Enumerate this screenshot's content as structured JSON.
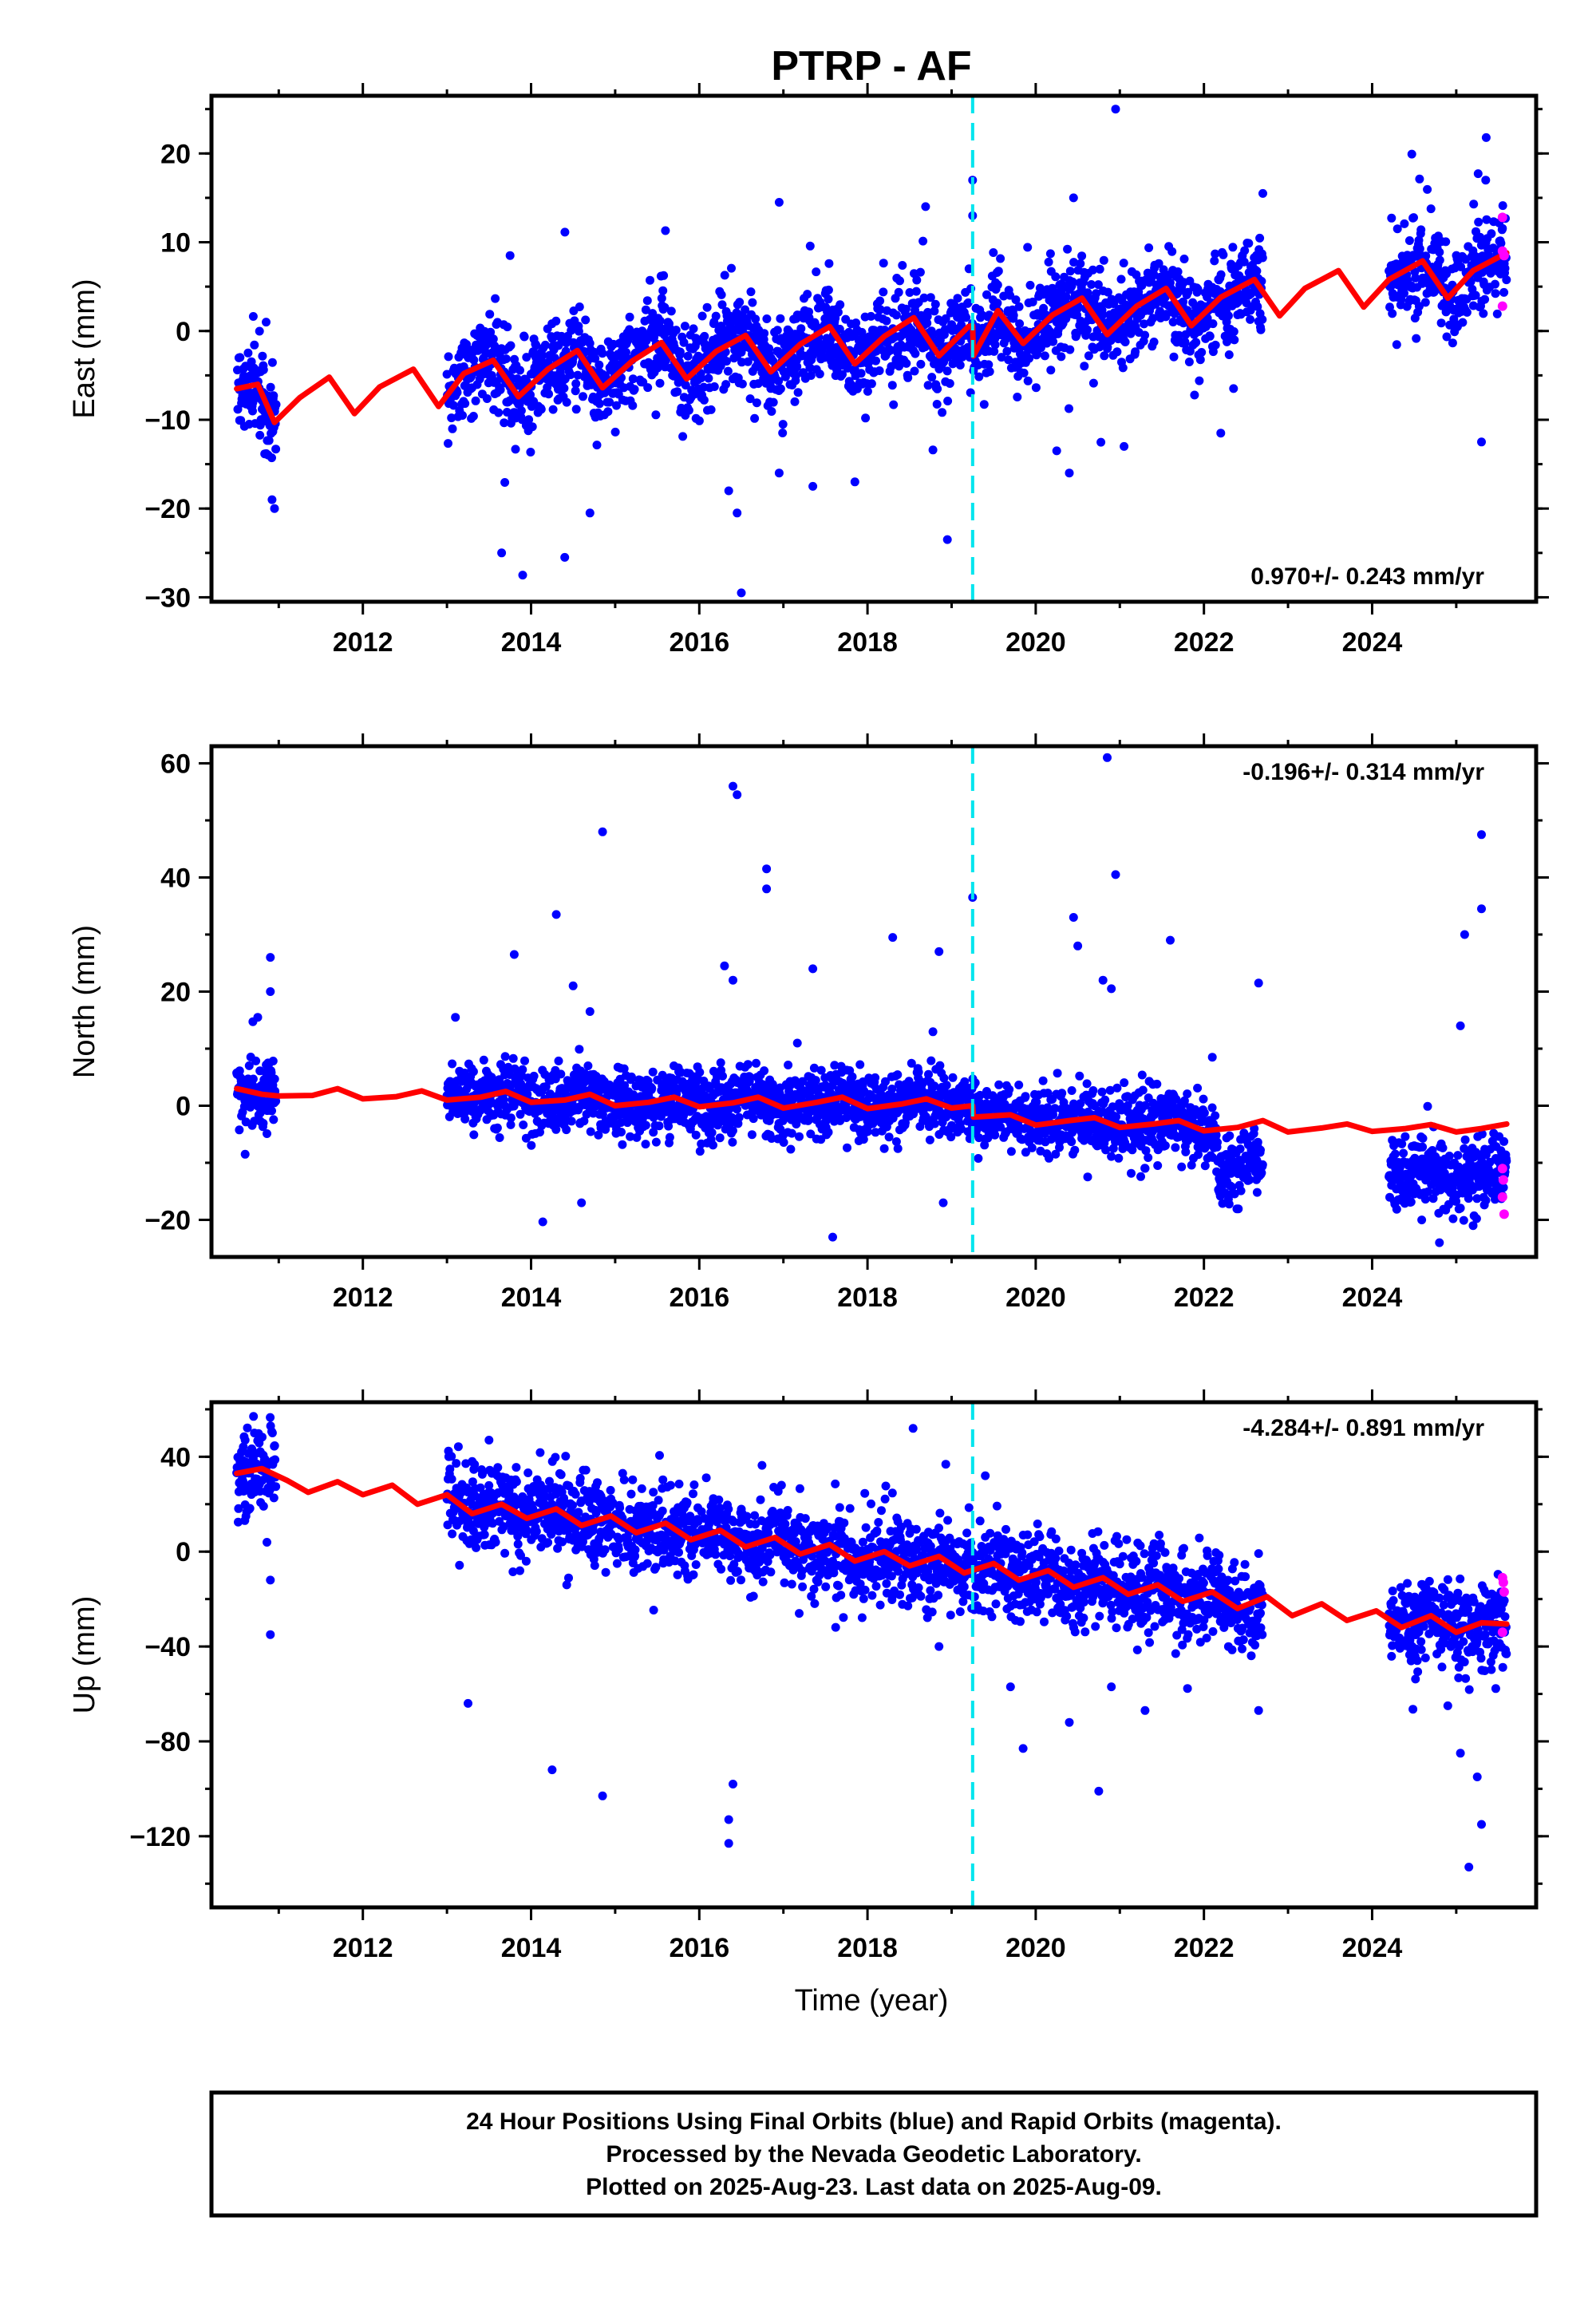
{
  "title": "PTRP - AF",
  "footer": {
    "lines": [
      "24 Hour Positions Using Final Orbits (blue) and Rapid Orbits (magenta).",
      "Processed by the Nevada Geodetic Laboratory.",
      "Plotted on 2025-Aug-23. Last data on 2025-Aug-09."
    ]
  },
  "colors": {
    "final_orbits": "#0000ff",
    "rapid_orbits": "#ff00ff",
    "model": "#ff0000",
    "equipment_change": "#00e5ee"
  },
  "chart_data": [
    {
      "type": "scatter",
      "component": "east",
      "ylabel": "East (mm)",
      "xlabel": "",
      "xlim": [
        2010.2,
        2025.95
      ],
      "ylim": [
        -30.5,
        26.5
      ],
      "yticks": [
        20,
        10,
        0,
        -10,
        -20,
        -30
      ],
      "ytick_labels": [
        "20",
        "10",
        "0",
        "−10",
        "−20",
        "−30"
      ],
      "xticks": [
        2012,
        2014,
        2016,
        2018,
        2020,
        2022,
        2024
      ],
      "xtick_labels": [
        "2012",
        "2014",
        "2016",
        "2018",
        "2020",
        "2022",
        "2024"
      ],
      "rate_label": "0.970+/- 0.243 mm/yr",
      "rate_position": "bottom-right",
      "equipment_change_year": 2019.25,
      "data_periods": [
        [
          2010.5,
          2010.97
        ],
        [
          2013.0,
          2022.7
        ],
        [
          2024.2,
          2025.6
        ]
      ],
      "rate_mm_yr": 0.97,
      "intercept_mm": -6.5,
      "annual_amplitude_mm": 2.3,
      "step_at_equipment_change_mm": -3.3,
      "scatter_sd_mm": 2.6,
      "model_knots": [
        [
          2010.5,
          -6.5
        ],
        [
          2010.75,
          -6.0
        ],
        [
          2010.95,
          -10.3
        ],
        [
          2011.25,
          -7.5
        ],
        [
          2011.6,
          -5.2
        ],
        [
          2011.9,
          -9.3
        ],
        [
          2012.2,
          -6.3
        ],
        [
          2012.6,
          -4.3
        ],
        [
          2012.9,
          -8.5
        ],
        [
          2013.2,
          -4.8
        ],
        [
          2013.55,
          -3.3
        ],
        [
          2013.85,
          -7.4
        ],
        [
          2014.2,
          -4.3
        ],
        [
          2014.55,
          -2.2
        ],
        [
          2014.85,
          -6.4
        ],
        [
          2015.2,
          -3.4
        ],
        [
          2015.55,
          -1.3
        ],
        [
          2015.85,
          -5.4
        ],
        [
          2016.2,
          -2.3
        ],
        [
          2016.55,
          -0.5
        ],
        [
          2016.85,
          -4.6
        ],
        [
          2017.2,
          -1.5
        ],
        [
          2017.55,
          0.5
        ],
        [
          2017.85,
          -3.7
        ],
        [
          2018.2,
          -0.6
        ],
        [
          2018.55,
          1.5
        ],
        [
          2018.85,
          -2.8
        ],
        [
          2019.2,
          0.5
        ],
        [
          2019.25,
          0.6
        ],
        [
          2019.26,
          -2.8
        ],
        [
          2019.55,
          2.3
        ],
        [
          2019.85,
          -1.4
        ],
        [
          2020.2,
          1.8
        ],
        [
          2020.55,
          3.7
        ],
        [
          2020.85,
          -0.4
        ],
        [
          2021.2,
          2.8
        ],
        [
          2021.55,
          4.8
        ],
        [
          2021.85,
          0.6
        ],
        [
          2022.2,
          3.8
        ],
        [
          2022.6,
          5.8
        ],
        [
          2022.9,
          1.7
        ],
        [
          2023.2,
          4.8
        ],
        [
          2023.6,
          6.8
        ],
        [
          2023.9,
          2.7
        ],
        [
          2024.2,
          5.8
        ],
        [
          2024.6,
          7.9
        ],
        [
          2024.9,
          3.7
        ],
        [
          2025.2,
          6.8
        ],
        [
          2025.6,
          8.8
        ]
      ],
      "outliers": [
        [
          2010.85,
          1.0
        ],
        [
          2010.95,
          -20.0
        ],
        [
          2010.92,
          -19.0
        ],
        [
          2013.65,
          -25.0
        ],
        [
          2013.9,
          -27.5
        ],
        [
          2014.4,
          -25.5
        ],
        [
          2014.7,
          -20.5
        ],
        [
          2016.35,
          -18.0
        ],
        [
          2016.45,
          -20.5
        ],
        [
          2016.5,
          -29.5
        ],
        [
          2016.95,
          -16.0
        ],
        [
          2017.35,
          -17.5
        ],
        [
          2017.85,
          -17.0
        ],
        [
          2018.95,
          -23.5
        ],
        [
          2019.25,
          17.0
        ],
        [
          2019.25,
          13.0
        ],
        [
          2016.95,
          14.5
        ],
        [
          2020.25,
          -13.5
        ],
        [
          2020.4,
          -16.0
        ],
        [
          2020.45,
          15.0
        ],
        [
          2020.95,
          25.0
        ],
        [
          2021.05,
          -13.0
        ],
        [
          2022.2,
          -11.5
        ],
        [
          2022.7,
          15.5
        ],
        [
          2025.35,
          17.0
        ],
        [
          2025.3,
          -12.5
        ],
        [
          2013.75,
          8.5
        ]
      ],
      "rapid_points": [
        [
          2025.55,
          12.8
        ],
        [
          2025.55,
          9.0
        ],
        [
          2025.57,
          8.5
        ],
        [
          2025.55,
          2.8
        ]
      ]
    },
    {
      "type": "scatter",
      "component": "north",
      "ylabel": "North (mm)",
      "xlabel": "",
      "xlim": [
        2010.2,
        2025.95
      ],
      "ylim": [
        -26.5,
        63.0
      ],
      "yticks": [
        60,
        40,
        20,
        0,
        -20
      ],
      "ytick_labels": [
        "60",
        "40",
        "20",
        "0",
        "−20"
      ],
      "xticks": [
        2012,
        2014,
        2016,
        2018,
        2020,
        2022,
        2024
      ],
      "xtick_labels": [
        "2012",
        "2014",
        "2016",
        "2018",
        "2020",
        "2022",
        "2024"
      ],
      "rate_label": "-0.196+/- 0.314 mm/yr",
      "rate_position": "top-right",
      "equipment_change_year": 2019.25,
      "data_periods": [
        [
          2010.5,
          2010.97
        ],
        [
          2013.0,
          2022.7
        ],
        [
          2024.2,
          2025.6
        ]
      ],
      "rate_mm_yr": -0.196,
      "intercept_mm": 2.5,
      "annual_amplitude_mm": 0.6,
      "step_at_equipment_change_mm": -2.8,
      "scatter_sd_mm": 2.8,
      "model_knots": [
        [
          2010.5,
          3.0
        ],
        [
          2010.8,
          2.0
        ],
        [
          2011.0,
          1.7
        ],
        [
          2011.4,
          1.8
        ],
        [
          2011.7,
          3.0
        ],
        [
          2012.0,
          1.2
        ],
        [
          2012.4,
          1.6
        ],
        [
          2012.7,
          2.6
        ],
        [
          2013.0,
          1.0
        ],
        [
          2013.4,
          1.5
        ],
        [
          2013.7,
          2.5
        ],
        [
          2014.0,
          0.6
        ],
        [
          2014.4,
          1.0
        ],
        [
          2014.7,
          2.0
        ],
        [
          2015.0,
          0.0
        ],
        [
          2015.4,
          0.6
        ],
        [
          2015.7,
          1.5
        ],
        [
          2016.0,
          -0.2
        ],
        [
          2016.4,
          0.5
        ],
        [
          2016.7,
          1.5
        ],
        [
          2017.0,
          -0.4
        ],
        [
          2017.4,
          0.6
        ],
        [
          2017.7,
          1.5
        ],
        [
          2018.0,
          -0.5
        ],
        [
          2018.4,
          0.3
        ],
        [
          2018.7,
          1.2
        ],
        [
          2019.0,
          -0.4
        ],
        [
          2019.25,
          0.0
        ],
        [
          2019.26,
          -2.0
        ],
        [
          2019.7,
          -1.6
        ],
        [
          2020.0,
          -3.4
        ],
        [
          2020.4,
          -2.6
        ],
        [
          2020.7,
          -2.1
        ],
        [
          2021.0,
          -3.8
        ],
        [
          2021.4,
          -3.2
        ],
        [
          2021.7,
          -2.6
        ],
        [
          2022.0,
          -4.4
        ],
        [
          2022.4,
          -3.8
        ],
        [
          2022.7,
          -2.6
        ],
        [
          2023.0,
          -4.6
        ],
        [
          2023.4,
          -3.9
        ],
        [
          2023.7,
          -3.2
        ],
        [
          2024.0,
          -4.5
        ],
        [
          2024.4,
          -4.0
        ],
        [
          2024.7,
          -3.3
        ],
        [
          2025.0,
          -4.6
        ],
        [
          2025.3,
          -4.0
        ],
        [
          2025.6,
          -3.2
        ]
      ],
      "segments": [
        {
          "from": 2022.15,
          "to": 2022.7,
          "offset_mm": -7.5
        },
        {
          "from": 2024.2,
          "to": 2025.6,
          "offset_mm": -7.5
        }
      ],
      "outliers": [
        [
          2010.9,
          26.0
        ],
        [
          2010.9,
          20.0
        ],
        [
          2010.75,
          15.5
        ],
        [
          2010.6,
          -8.5
        ],
        [
          2013.1,
          15.5
        ],
        [
          2013.8,
          26.5
        ],
        [
          2014.3,
          33.5
        ],
        [
          2014.5,
          21.0
        ],
        [
          2014.85,
          48.0
        ],
        [
          2014.7,
          16.5
        ],
        [
          2014.6,
          -17.0
        ],
        [
          2016.3,
          24.5
        ],
        [
          2016.4,
          56.0
        ],
        [
          2016.45,
          54.5
        ],
        [
          2016.8,
          41.5
        ],
        [
          2016.8,
          38.0
        ],
        [
          2016.4,
          22.0
        ],
        [
          2017.35,
          24.0
        ],
        [
          2018.3,
          29.5
        ],
        [
          2018.85,
          27.0
        ],
        [
          2018.9,
          -17.0
        ],
        [
          2019.25,
          36.5
        ],
        [
          2020.45,
          33.0
        ],
        [
          2020.5,
          28.0
        ],
        [
          2020.8,
          22.0
        ],
        [
          2020.85,
          61.0
        ],
        [
          2020.95,
          40.5
        ],
        [
          2020.9,
          20.5
        ],
        [
          2021.6,
          29.0
        ],
        [
          2022.65,
          21.5
        ],
        [
          2022.1,
          8.5
        ],
        [
          2025.3,
          47.5
        ],
        [
          2025.3,
          34.5
        ],
        [
          2025.1,
          30.0
        ],
        [
          2025.05,
          14.0
        ],
        [
          2024.8,
          -24.0
        ],
        [
          2024.5,
          -7.0
        ],
        [
          2025.2,
          -21.0
        ]
      ],
      "rapid_points": [
        [
          2025.55,
          -11.0
        ],
        [
          2025.56,
          -13.0
        ],
        [
          2025.55,
          -16.0
        ],
        [
          2025.57,
          -19.0
        ]
      ]
    },
    {
      "type": "scatter",
      "component": "up",
      "ylabel": "Up (mm)",
      "xlabel": "Time (year)",
      "xlim": [
        2010.2,
        2025.95
      ],
      "ylim": [
        -150.0,
        63.0
      ],
      "yticks": [
        40,
        0,
        -40,
        -80,
        -120
      ],
      "ytick_labels": [
        "40",
        "0",
        "−40",
        "−80",
        "−120"
      ],
      "xticks": [
        2012,
        2014,
        2016,
        2018,
        2020,
        2022,
        2024
      ],
      "xtick_labels": [
        "2012",
        "2014",
        "2016",
        "2018",
        "2020",
        "2022",
        "2024"
      ],
      "rate_label": "-4.284+/- 0.891 mm/yr",
      "rate_position": "top-right",
      "equipment_change_year": 2019.25,
      "data_periods": [
        [
          2010.5,
          2010.97
        ],
        [
          2013.0,
          2022.7
        ],
        [
          2024.2,
          2025.6
        ]
      ],
      "rate_mm_yr": -4.284,
      "intercept_mm": 32.0,
      "annual_amplitude_mm": 3.5,
      "step_at_equipment_change_mm": 0.0,
      "scatter_sd_mm": 8.5,
      "model_knots": [
        [
          2010.5,
          33.0
        ],
        [
          2010.8,
          35.0
        ],
        [
          2011.1,
          30.0
        ],
        [
          2011.35,
          25.0
        ],
        [
          2011.7,
          29.5
        ],
        [
          2012.0,
          24.0
        ],
        [
          2012.35,
          28.0
        ],
        [
          2012.65,
          20.0
        ],
        [
          2013.0,
          24.0
        ],
        [
          2013.3,
          16.0
        ],
        [
          2013.65,
          20.0
        ],
        [
          2013.95,
          14.0
        ],
        [
          2014.3,
          18.0
        ],
        [
          2014.6,
          11.0
        ],
        [
          2014.95,
          15.0
        ],
        [
          2015.25,
          8.0
        ],
        [
          2015.6,
          12.0
        ],
        [
          2015.9,
          5.0
        ],
        [
          2016.25,
          9.0
        ],
        [
          2016.55,
          2.0
        ],
        [
          2016.9,
          6.0
        ],
        [
          2017.2,
          -1.0
        ],
        [
          2017.55,
          3.0
        ],
        [
          2017.85,
          -4.0
        ],
        [
          2018.2,
          0.0
        ],
        [
          2018.5,
          -6.0
        ],
        [
          2018.85,
          -2.0
        ],
        [
          2019.15,
          -9.0
        ],
        [
          2019.5,
          -5.0
        ],
        [
          2019.8,
          -12.0
        ],
        [
          2020.15,
          -8.0
        ],
        [
          2020.45,
          -15.0
        ],
        [
          2020.8,
          -11.0
        ],
        [
          2021.1,
          -18.0
        ],
        [
          2021.45,
          -14.0
        ],
        [
          2021.75,
          -21.0
        ],
        [
          2022.1,
          -17.0
        ],
        [
          2022.4,
          -24.0
        ],
        [
          2022.75,
          -19.0
        ],
        [
          2023.05,
          -27.0
        ],
        [
          2023.4,
          -22.0
        ],
        [
          2023.7,
          -29.0
        ],
        [
          2024.05,
          -25.0
        ],
        [
          2024.35,
          -32.0
        ],
        [
          2024.7,
          -27.0
        ],
        [
          2025.0,
          -34.0
        ],
        [
          2025.3,
          -30.0
        ],
        [
          2025.6,
          -30.5
        ]
      ],
      "outliers": [
        [
          2010.7,
          57.0
        ],
        [
          2010.6,
          47.0
        ],
        [
          2010.9,
          -35.0
        ],
        [
          2010.9,
          -12.0
        ],
        [
          2013.25,
          -64.0
        ],
        [
          2013.5,
          47.0
        ],
        [
          2014.25,
          -92.0
        ],
        [
          2014.85,
          -103.0
        ],
        [
          2016.4,
          -98.0
        ],
        [
          2016.35,
          -113.0
        ],
        [
          2016.35,
          -123.0
        ],
        [
          2019.4,
          32.0
        ],
        [
          2019.85,
          -83.0
        ],
        [
          2019.7,
          -57.0
        ],
        [
          2020.4,
          -72.0
        ],
        [
          2020.75,
          -101.0
        ],
        [
          2020.9,
          -57.0
        ],
        [
          2021.3,
          -67.0
        ],
        [
          2022.65,
          -67.0
        ],
        [
          2025.15,
          -133.0
        ],
        [
          2025.3,
          -115.0
        ],
        [
          2025.25,
          -95.0
        ],
        [
          2025.05,
          -85.0
        ],
        [
          2024.9,
          -65.0
        ],
        [
          2013.3,
          38.0
        ],
        [
          2018.85,
          -40.0
        ]
      ],
      "rapid_points": [
        [
          2025.55,
          -11.0
        ],
        [
          2025.56,
          -13.0
        ],
        [
          2025.57,
          -17.0
        ],
        [
          2025.55,
          -34.0
        ]
      ]
    }
  ]
}
